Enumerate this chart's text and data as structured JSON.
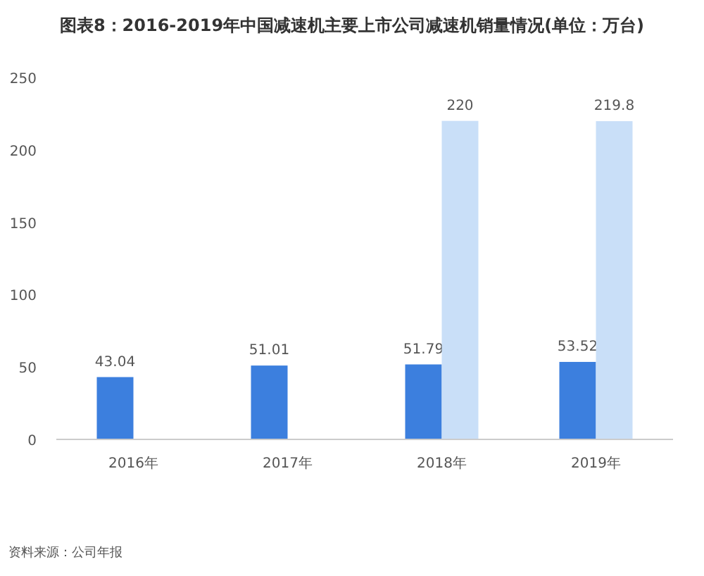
{
  "chart_data": {
    "type": "bar",
    "title": "图表8：2016-2019年中国减速机主要上市公司减速机销量情况(单位：万台)",
    "categories": [
      "2016年",
      "2017年",
      "2018年",
      "2019年"
    ],
    "series": [
      {
        "color": "#3c7fde",
        "values": [
          43.04,
          51.01,
          51.79,
          53.52
        ]
      },
      {
        "color": "#c9dff8",
        "values": [
          null,
          null,
          220,
          219.8
        ]
      }
    ],
    "ylim": [
      0,
      250
    ],
    "yticks": [
      0,
      50,
      100,
      150,
      200,
      250
    ],
    "data_labels": true,
    "annotations": [
      "资料来源：公司年报"
    ]
  }
}
